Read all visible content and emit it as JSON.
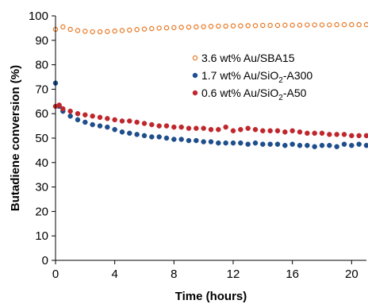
{
  "chart_data": {
    "type": "scatter",
    "title": "",
    "xlabel": "Time (hours)",
    "ylabel": "Butadiene conversion (%)",
    "xlim": [
      0,
      21
    ],
    "ylim": [
      0,
      100
    ],
    "xticks": [
      0,
      4,
      8,
      12,
      16,
      20
    ],
    "yticks": [
      0,
      10,
      20,
      30,
      40,
      50,
      60,
      70,
      80,
      90,
      100
    ],
    "grid": false,
    "legend_position": "right",
    "series": [
      {
        "label_parts": [
          "3.6 wt% Au/SBA15"
        ],
        "color": "#E87722",
        "marker": "hollow-circle",
        "x": [
          0,
          0.5,
          1,
          1.5,
          2,
          2.5,
          3,
          3.5,
          4,
          4.5,
          5,
          5.5,
          6,
          6.5,
          7,
          7.5,
          8,
          8.5,
          9,
          9.5,
          10,
          10.5,
          11,
          11.5,
          12,
          12.5,
          13,
          13.5,
          14,
          14.5,
          15,
          15.5,
          16,
          16.5,
          17,
          17.5,
          18,
          18.5,
          19,
          19.5,
          20,
          20.5,
          21
        ],
        "y": [
          94.5,
          95.5,
          94.5,
          94,
          93.7,
          93.5,
          93.5,
          93.6,
          93.8,
          94,
          94.2,
          94.4,
          94.6,
          94.8,
          95,
          95.1,
          95.2,
          95.3,
          95.4,
          95.5,
          95.6,
          95.7,
          95.8,
          95.8,
          95.9,
          95.9,
          96,
          96,
          96.1,
          96.1,
          96.1,
          96.2,
          96.2,
          96.2,
          96.3,
          96.3,
          96.3,
          96.3,
          96.4,
          96.4,
          96.4,
          96.4,
          96.4
        ]
      },
      {
        "label_parts": [
          "1.7 wt% Au/SiO",
          "2",
          "-A300"
        ],
        "color": "#1F4E8C",
        "marker": "filled-circle",
        "x": [
          0,
          0.25,
          0.5,
          1,
          1.5,
          2,
          2.5,
          3,
          3.5,
          4,
          4.5,
          5,
          5.5,
          6,
          6.5,
          7,
          7.5,
          8,
          8.5,
          9,
          9.5,
          10,
          10.5,
          11,
          11.5,
          12,
          12.5,
          13,
          13.5,
          14,
          14.5,
          15,
          15.5,
          16,
          16.5,
          17,
          17.5,
          18,
          18.5,
          19,
          19.5,
          20,
          20.5,
          21
        ],
        "y": [
          72.5,
          63,
          61,
          59,
          57.5,
          56.5,
          55.5,
          55,
          54.5,
          53.5,
          52.5,
          52,
          51.5,
          51,
          50.5,
          50.5,
          50,
          49.5,
          49.5,
          49,
          49,
          48.5,
          48.5,
          48,
          48,
          48,
          48,
          47.5,
          48,
          47.5,
          47.5,
          47.5,
          47,
          47.5,
          47,
          47,
          46.5,
          47,
          47,
          46.5,
          47.5,
          47,
          47.5,
          47
        ]
      },
      {
        "label_parts": [
          "0.6 wt% Au/SiO",
          "2",
          "-A50"
        ],
        "color": "#C0272D",
        "marker": "filled-circle",
        "x": [
          0,
          0.25,
          0.5,
          1,
          1.5,
          2,
          2.5,
          3,
          3.5,
          4,
          4.5,
          5,
          5.5,
          6,
          6.5,
          7,
          7.5,
          8,
          8.5,
          9,
          9.5,
          10,
          10.5,
          11,
          11.5,
          12,
          12.5,
          13,
          13.5,
          14,
          14.5,
          15,
          15.5,
          16,
          16.5,
          17,
          17.5,
          18,
          18.5,
          19,
          19.5,
          20,
          20.5,
          21
        ],
        "y": [
          63,
          63.5,
          62,
          61,
          60,
          59.5,
          59,
          58.5,
          58,
          57.5,
          57,
          57,
          56.5,
          56,
          55.5,
          55,
          55,
          54.5,
          54.5,
          54,
          54,
          54,
          53.5,
          53.5,
          54.5,
          53,
          53.5,
          54,
          53.5,
          53,
          53,
          53,
          52.5,
          53,
          52.5,
          52,
          52,
          52,
          51.5,
          51.5,
          51.5,
          51,
          51,
          51
        ]
      }
    ]
  }
}
